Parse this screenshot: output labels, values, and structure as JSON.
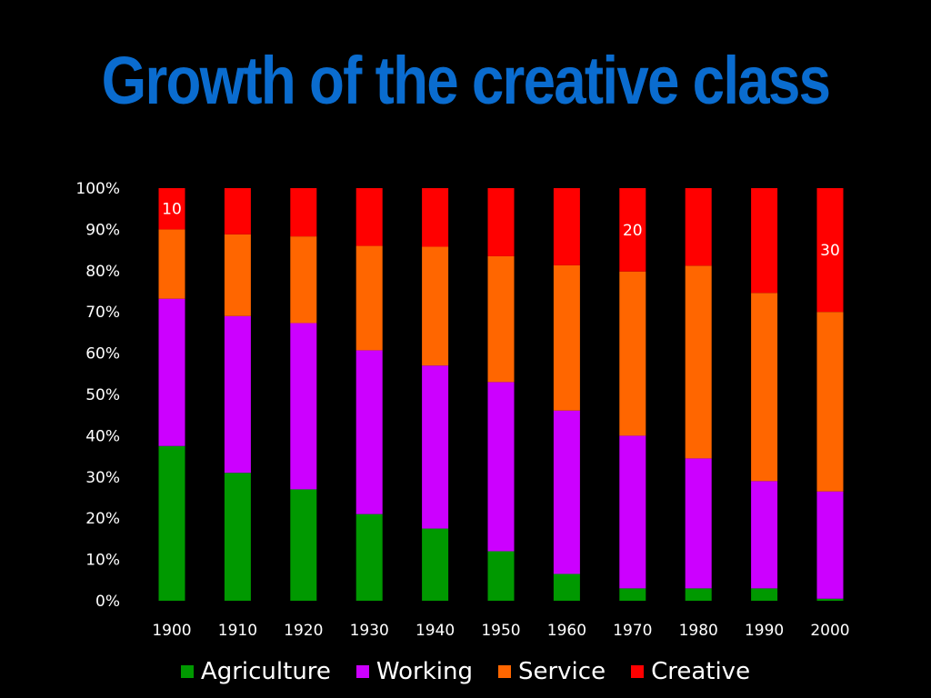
{
  "chart_data": {
    "type": "bar",
    "stacked": true,
    "title": "Growth of the creative class",
    "categories": [
      "1900",
      "1910",
      "1920",
      "1930",
      "1940",
      "1950",
      "1960",
      "1970",
      "1980",
      "1990",
      "2000"
    ],
    "series": [
      {
        "name": "Agriculture",
        "color": "#009900",
        "values": [
          37.5,
          31,
          27,
          21,
          17.5,
          12,
          6.5,
          3,
          3,
          3,
          0.5
        ]
      },
      {
        "name": "Working",
        "color": "#cc00ff",
        "values": [
          35.7,
          38,
          40.3,
          39.7,
          39.5,
          41,
          39.6,
          37,
          31.5,
          26,
          26
        ]
      },
      {
        "name": "Service",
        "color": "#ff6600",
        "values": [
          16.8,
          19.8,
          21,
          25.3,
          28.8,
          30.5,
          35.2,
          39.8,
          46.7,
          45.6,
          43.5
        ]
      },
      {
        "name": "Creative",
        "color": "#ff0000",
        "values": [
          10,
          11.2,
          11.7,
          14,
          14.2,
          16.5,
          18.7,
          20.2,
          18.8,
          25.4,
          30
        ]
      }
    ],
    "data_labels": [
      {
        "category": "1900",
        "series": "Creative",
        "text": "10"
      },
      {
        "category": "1970",
        "series": "Creative",
        "text": "20"
      },
      {
        "category": "2000",
        "series": "Creative",
        "text": "30"
      }
    ],
    "ylim": [
      0,
      100
    ],
    "y_ticks": [
      "0%",
      "10%",
      "20%",
      "30%",
      "40%",
      "50%",
      "60%",
      "70%",
      "80%",
      "90%",
      "100%"
    ],
    "legend_position": "bottom",
    "grid": false
  }
}
